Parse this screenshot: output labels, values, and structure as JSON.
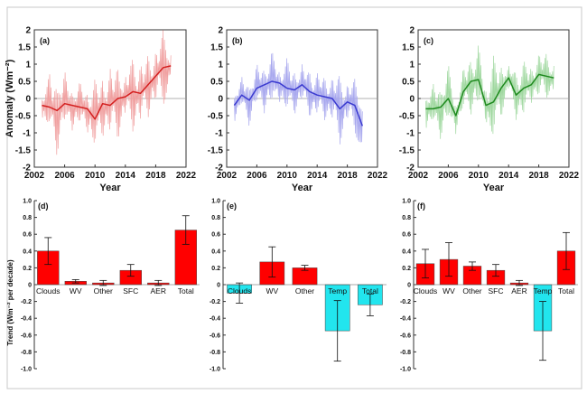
{
  "chart_data": [
    {
      "panel": "(a)",
      "type": "line",
      "xlabel": "Year",
      "ylabel": "Anomaly (Wm⁻²)",
      "xlim": [
        2002,
        2022
      ],
      "ylim": [
        -2,
        2
      ],
      "xticks": [
        "2002",
        "2006",
        "2010",
        "2014",
        "2018",
        "2022"
      ],
      "yticks": [
        "2",
        "1.5",
        "1",
        "0.5",
        "0",
        "-0.5",
        "-1",
        "-1.5",
        "-2"
      ],
      "colors": {
        "smooth": "#d42020",
        "raw": "#f0a0a0"
      },
      "x": [
        2003,
        2004,
        2005,
        2006,
        2007,
        2008,
        2009,
        2010,
        2011,
        2012,
        2013,
        2014,
        2015,
        2016,
        2017,
        2018,
        2019,
        2020
      ],
      "smooth": [
        -0.2,
        -0.25,
        -0.35,
        -0.15,
        -0.2,
        -0.25,
        -0.3,
        -0.6,
        -0.15,
        -0.2,
        0.0,
        0.05,
        0.2,
        0.15,
        0.4,
        0.65,
        0.9,
        0.95
      ],
      "raw": [
        -0.5,
        0.6,
        -1.6,
        0.7,
        -0.8,
        0.4,
        -0.9,
        0.5,
        -1.1,
        0.8,
        -1.2,
        0.6,
        -1.0,
        1.0,
        -0.6,
        1.4,
        -0.3,
        1.2
      ]
    },
    {
      "panel": "(b)",
      "type": "line",
      "xlabel": "Year",
      "ylabel": "",
      "xlim": [
        2002,
        2022
      ],
      "ylim": [
        -2,
        2
      ],
      "xticks": [
        "2002",
        "2006",
        "2010",
        "2014",
        "2018",
        "2022"
      ],
      "yticks": [
        "2",
        "1.5",
        "1",
        "0.5",
        "0",
        "-0.5",
        "-1",
        "-1.5",
        "-2"
      ],
      "colors": {
        "smooth": "#3a3ad0",
        "raw": "#a8a8ee"
      },
      "x": [
        2003,
        2004,
        2005,
        2006,
        2007,
        2008,
        2009,
        2010,
        2011,
        2012,
        2013,
        2014,
        2015,
        2016,
        2017,
        2018,
        2019,
        2020
      ],
      "smooth": [
        -0.2,
        0.1,
        -0.05,
        0.3,
        0.4,
        0.5,
        0.45,
        0.3,
        0.25,
        0.4,
        0.2,
        0.1,
        0.05,
        0.0,
        -0.3,
        -0.1,
        -0.2,
        -0.8
      ],
      "raw": [
        -0.6,
        0.5,
        -0.7,
        0.9,
        -0.3,
        1.3,
        0.0,
        1.1,
        -0.4,
        0.9,
        -0.5,
        0.7,
        -0.6,
        0.6,
        -1.4,
        0.4,
        -1.0,
        -1.2
      ]
    },
    {
      "panel": "(c)",
      "type": "line",
      "xlabel": "Year",
      "ylabel": "",
      "xlim": [
        2002,
        2022
      ],
      "ylim": [
        -2,
        2
      ],
      "xticks": [
        "2002",
        "2006",
        "2010",
        "2014",
        "2018",
        "2022"
      ],
      "yticks": [
        "2",
        "1.5",
        "1",
        "0.5",
        "0",
        "-0.5",
        "-1",
        "-1.5",
        "-2"
      ],
      "colors": {
        "smooth": "#1e8a1e",
        "raw": "#a0d8a0"
      },
      "x": [
        2003,
        2004,
        2005,
        2006,
        2007,
        2008,
        2009,
        2010,
        2011,
        2012,
        2013,
        2014,
        2015,
        2016,
        2017,
        2018,
        2019,
        2020
      ],
      "smooth": [
        -0.3,
        -0.3,
        -0.25,
        0.0,
        -0.5,
        0.2,
        0.5,
        0.55,
        -0.2,
        -0.1,
        0.3,
        0.6,
        0.1,
        0.3,
        0.4,
        0.7,
        0.65,
        0.6
      ],
      "raw": [
        -0.8,
        0.3,
        -1.1,
        0.9,
        -0.9,
        0.8,
        -0.4,
        1.5,
        -0.7,
        1.2,
        -0.5,
        0.9,
        -0.6,
        1.1,
        -0.1,
        1.3,
        0.0,
        0.9
      ]
    },
    {
      "panel": "(d)",
      "type": "bar",
      "xlabel": "",
      "ylabel": "Trend (Wm⁻² per decade)",
      "ylim": [
        -1,
        1
      ],
      "yticks": [
        "1.0",
        "0.8",
        "0.6",
        "0.4",
        "0.2",
        "0",
        "-0.2",
        "-0.4",
        "-0.6",
        "-0.8",
        "-1.0"
      ],
      "categories": [
        "Clouds",
        "WV",
        "Other",
        "SFC",
        "AER",
        "Total"
      ],
      "values": [
        0.4,
        0.04,
        0.02,
        0.17,
        0.02,
        0.65
      ],
      "errors": [
        0.16,
        0.02,
        0.03,
        0.07,
        0.03,
        0.17
      ],
      "bar_colors": [
        "#ff0000",
        "#ff0000",
        "#ff0000",
        "#ff0000",
        "#ff0000",
        "#ff0000"
      ]
    },
    {
      "panel": "(e)",
      "type": "bar",
      "xlabel": "",
      "ylabel": "",
      "ylim": [
        -1,
        1
      ],
      "yticks": [
        "1.0",
        "0.8",
        "0.6",
        "0.4",
        "0.2",
        "0",
        "-0.2",
        "-0.4",
        "-0.6",
        "-0.8",
        "-1.0"
      ],
      "categories": [
        "Clouds",
        "WV",
        "Other",
        "Temp",
        "Total"
      ],
      "values": [
        -0.1,
        0.27,
        0.2,
        -0.55,
        -0.24
      ],
      "errors": [
        0.12,
        0.18,
        0.03,
        0.36,
        0.13
      ],
      "bar_colors": [
        "#22e5ee",
        "#ff0000",
        "#ff0000",
        "#22e5ee",
        "#22e5ee"
      ]
    },
    {
      "panel": "(f)",
      "type": "bar",
      "xlabel": "",
      "ylabel": "",
      "ylim": [
        -1,
        1
      ],
      "yticks": [
        "1.0",
        "0.8",
        "0.6",
        "0.4",
        "0.2",
        "0",
        "-0.2",
        "-0.4",
        "-0.6",
        "-0.8",
        "-1.0"
      ],
      "categories": [
        "Clouds",
        "WV",
        "Other",
        "SFC",
        "AER",
        "Temp",
        "Total"
      ],
      "values": [
        0.25,
        0.3,
        0.22,
        0.17,
        0.02,
        -0.55,
        0.4
      ],
      "errors": [
        0.17,
        0.2,
        0.05,
        0.07,
        0.03,
        0.35,
        0.22
      ],
      "bar_colors": [
        "#ff0000",
        "#ff0000",
        "#ff0000",
        "#ff0000",
        "#ff0000",
        "#22e5ee",
        "#ff0000"
      ]
    }
  ]
}
